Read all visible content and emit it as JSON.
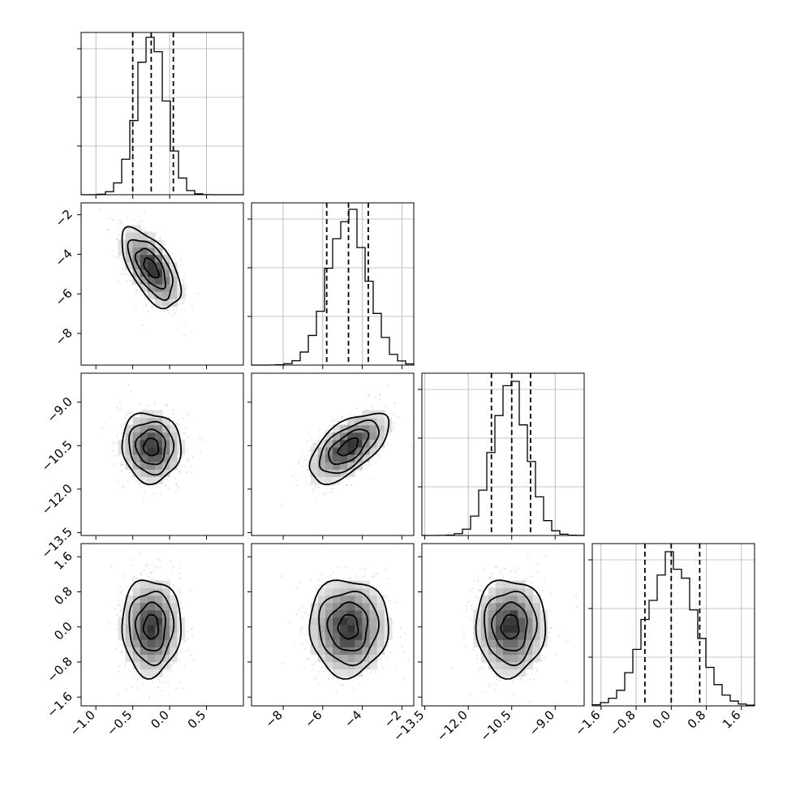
{
  "chart_data": {
    "type": "corner",
    "n_params": 4,
    "grid": true,
    "title": "",
    "params": [
      {
        "label": "",
        "range": [
          -1.2,
          1.0
        ],
        "ticks": [
          -1.0,
          -0.5,
          0.0,
          0.5
        ],
        "tick_labels": [
          "−1.0",
          "−0.5",
          "0.0",
          "0.5"
        ],
        "quantiles": [
          -0.5,
          -0.25,
          0.05
        ],
        "mean": -0.25,
        "sd": 0.2
      },
      {
        "label": "",
        "range": [
          -9.6,
          -1.4
        ],
        "ticks": [
          -8,
          -6,
          -4,
          -2
        ],
        "tick_labels": [
          "−8",
          "−6",
          "−4",
          "−2"
        ],
        "quantiles": [
          -5.8,
          -4.7,
          -3.7
        ],
        "mean": -4.7,
        "sd": 1.0
      },
      {
        "label": "",
        "range": [
          -13.6,
          -8.0
        ],
        "ticks": [
          -13.5,
          -12.0,
          -10.5,
          -9.0
        ],
        "tick_labels": [
          "−13.5",
          "−12.0",
          "−10.5",
          "−9.0"
        ],
        "quantiles": [
          -11.2,
          -10.5,
          -9.85
        ],
        "mean": -10.55,
        "sd": 0.6
      },
      {
        "label": "",
        "range": [
          -1.8,
          1.9
        ],
        "ticks": [
          -1.6,
          -0.8,
          0.0,
          0.8,
          1.6
        ],
        "tick_labels": [
          "−1.6",
          "−0.8",
          "0.0",
          "0.8",
          "1.6"
        ],
        "quantiles": [
          -0.6,
          0.0,
          0.65
        ],
        "mean": 0.0,
        "sd": 0.55
      }
    ],
    "correlations": [
      [
        1.0,
        -0.6,
        -0.05,
        0.0
      ],
      [
        -0.6,
        1.0,
        0.6,
        0.0
      ],
      [
        -0.05,
        0.6,
        1.0,
        0.0
      ],
      [
        0.0,
        0.0,
        0.0,
        1.0
      ]
    ],
    "hist_max_fraction": [
      0.97,
      0.96,
      0.95,
      0.95
    ],
    "hist_ytick_fractions": [
      0.3,
      0.6,
      0.9
    ],
    "contour_levels_sigma": [
      0.5,
      1.0,
      1.5,
      2.0
    ]
  }
}
